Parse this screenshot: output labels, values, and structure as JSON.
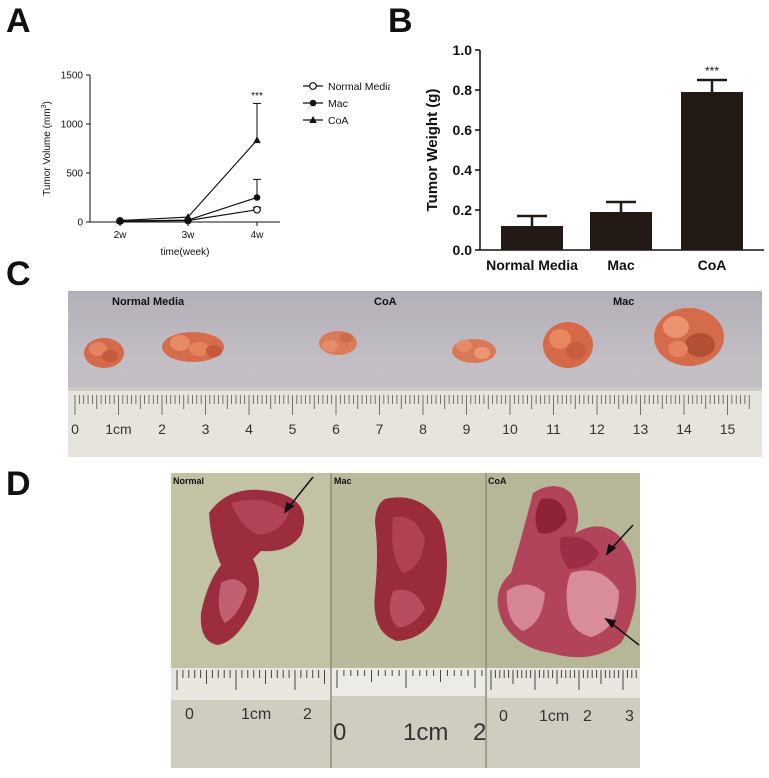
{
  "panels": {
    "a": "A",
    "b": "B",
    "c": "C",
    "d": "D"
  },
  "chart_data": [
    {
      "type": "line",
      "x": [
        "2w",
        "3w",
        "4w"
      ],
      "series": [
        {
          "name": "Normal Media",
          "marker": "open-circle",
          "values": [
            10,
            15,
            125
          ],
          "error": [
            0,
            0,
            25
          ]
        },
        {
          "name": "Mac",
          "marker": "filled-circle",
          "values": [
            10,
            20,
            250
          ],
          "error": [
            0,
            0,
            185
          ]
        },
        {
          "name": "CoA",
          "marker": "triangle",
          "values": [
            15,
            50,
            835
          ],
          "error": [
            0,
            0,
            375
          ]
        }
      ],
      "xlabel": "time(week)",
      "ylabel_main": "Tumor Volume (mm",
      "ylabel_sup": "3",
      "ylabel_end": ")",
      "ylim": [
        0,
        1500
      ],
      "yticks": [
        0,
        500,
        1000,
        1500
      ],
      "annotation": {
        "text": "***",
        "x": "4w"
      },
      "legend_position": "right"
    },
    {
      "type": "bar",
      "categories": [
        "Normal Media",
        "Mac",
        "CoA"
      ],
      "values": [
        0.12,
        0.19,
        0.79
      ],
      "error": [
        0.05,
        0.05,
        0.06
      ],
      "ylabel": "Tumor Weight (g)",
      "ylim": [
        0,
        1.0
      ],
      "yticks": [
        "0.0",
        "0.2",
        "0.4",
        "0.6",
        "0.8",
        "1.0"
      ],
      "annotation": {
        "text": "***",
        "category": "CoA"
      },
      "bar_color": "#231a16"
    }
  ],
  "photo_c": {
    "labels": [
      "Normal Media",
      "CoA",
      "Mac"
    ],
    "ruler_numbers": [
      "0",
      "1cm",
      "2",
      "3",
      "4",
      "5",
      "6",
      "7",
      "8",
      "9",
      "10",
      "11",
      "12",
      "13",
      "14",
      "15"
    ]
  },
  "photo_d": {
    "labels": [
      "Normal",
      "Mac",
      "CoA"
    ],
    "ruler_normal": [
      "0",
      "1cm",
      "2"
    ],
    "ruler_mac": [
      "0",
      "1cm",
      "2"
    ],
    "ruler_coa": [
      "0",
      "1cm",
      "2",
      "3"
    ]
  }
}
